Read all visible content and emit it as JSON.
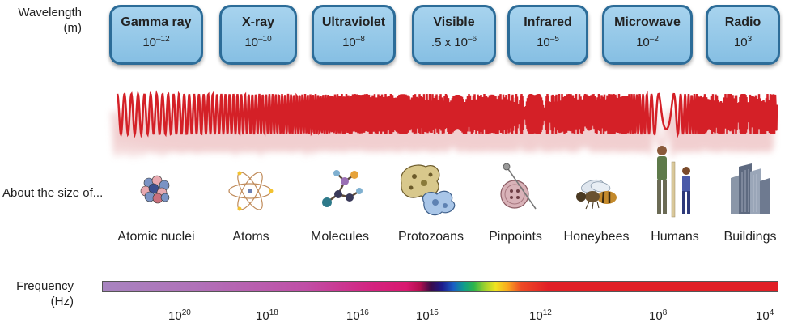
{
  "labels": {
    "wavelength": [
      "Wavelength",
      "(m)"
    ],
    "size": "About the size of...",
    "frequency": [
      "Frequency",
      "(Hz)"
    ]
  },
  "bands": [
    {
      "name": "Gamma ray",
      "wl_base": "10",
      "wl_exp": "–12"
    },
    {
      "name": "X-ray",
      "wl_base": "10",
      "wl_exp": "–10"
    },
    {
      "name": "Ultraviolet",
      "wl_base": "10",
      "wl_exp": "–8"
    },
    {
      "name": "Visible",
      "wl_base": ".5 x 10",
      "wl_exp": "–6"
    },
    {
      "name": "Infrared",
      "wl_base": "10",
      "wl_exp": "–5"
    },
    {
      "name": "Microwave",
      "wl_base": "10",
      "wl_exp": "–2"
    },
    {
      "name": "Radio",
      "wl_base": "10",
      "wl_exp": "3"
    }
  ],
  "sizes": [
    "Atomic nuclei",
    "Atoms",
    "Molecules",
    "Protozoans",
    "Pinpoints",
    "Honeybees",
    "Humans",
    "Buildings"
  ],
  "frequency_ticks": [
    {
      "base": "10",
      "exp": "20"
    },
    {
      "base": "10",
      "exp": "18"
    },
    {
      "base": "10",
      "exp": "16"
    },
    {
      "base": "10",
      "exp": "15"
    },
    {
      "base": "10",
      "exp": "12"
    },
    {
      "base": "10",
      "exp": "8"
    },
    {
      "base": "10",
      "exp": "4"
    }
  ],
  "colors": {
    "band_fill": "#92c8e8",
    "band_border": "#2c6c98",
    "wave": "#d42027"
  }
}
